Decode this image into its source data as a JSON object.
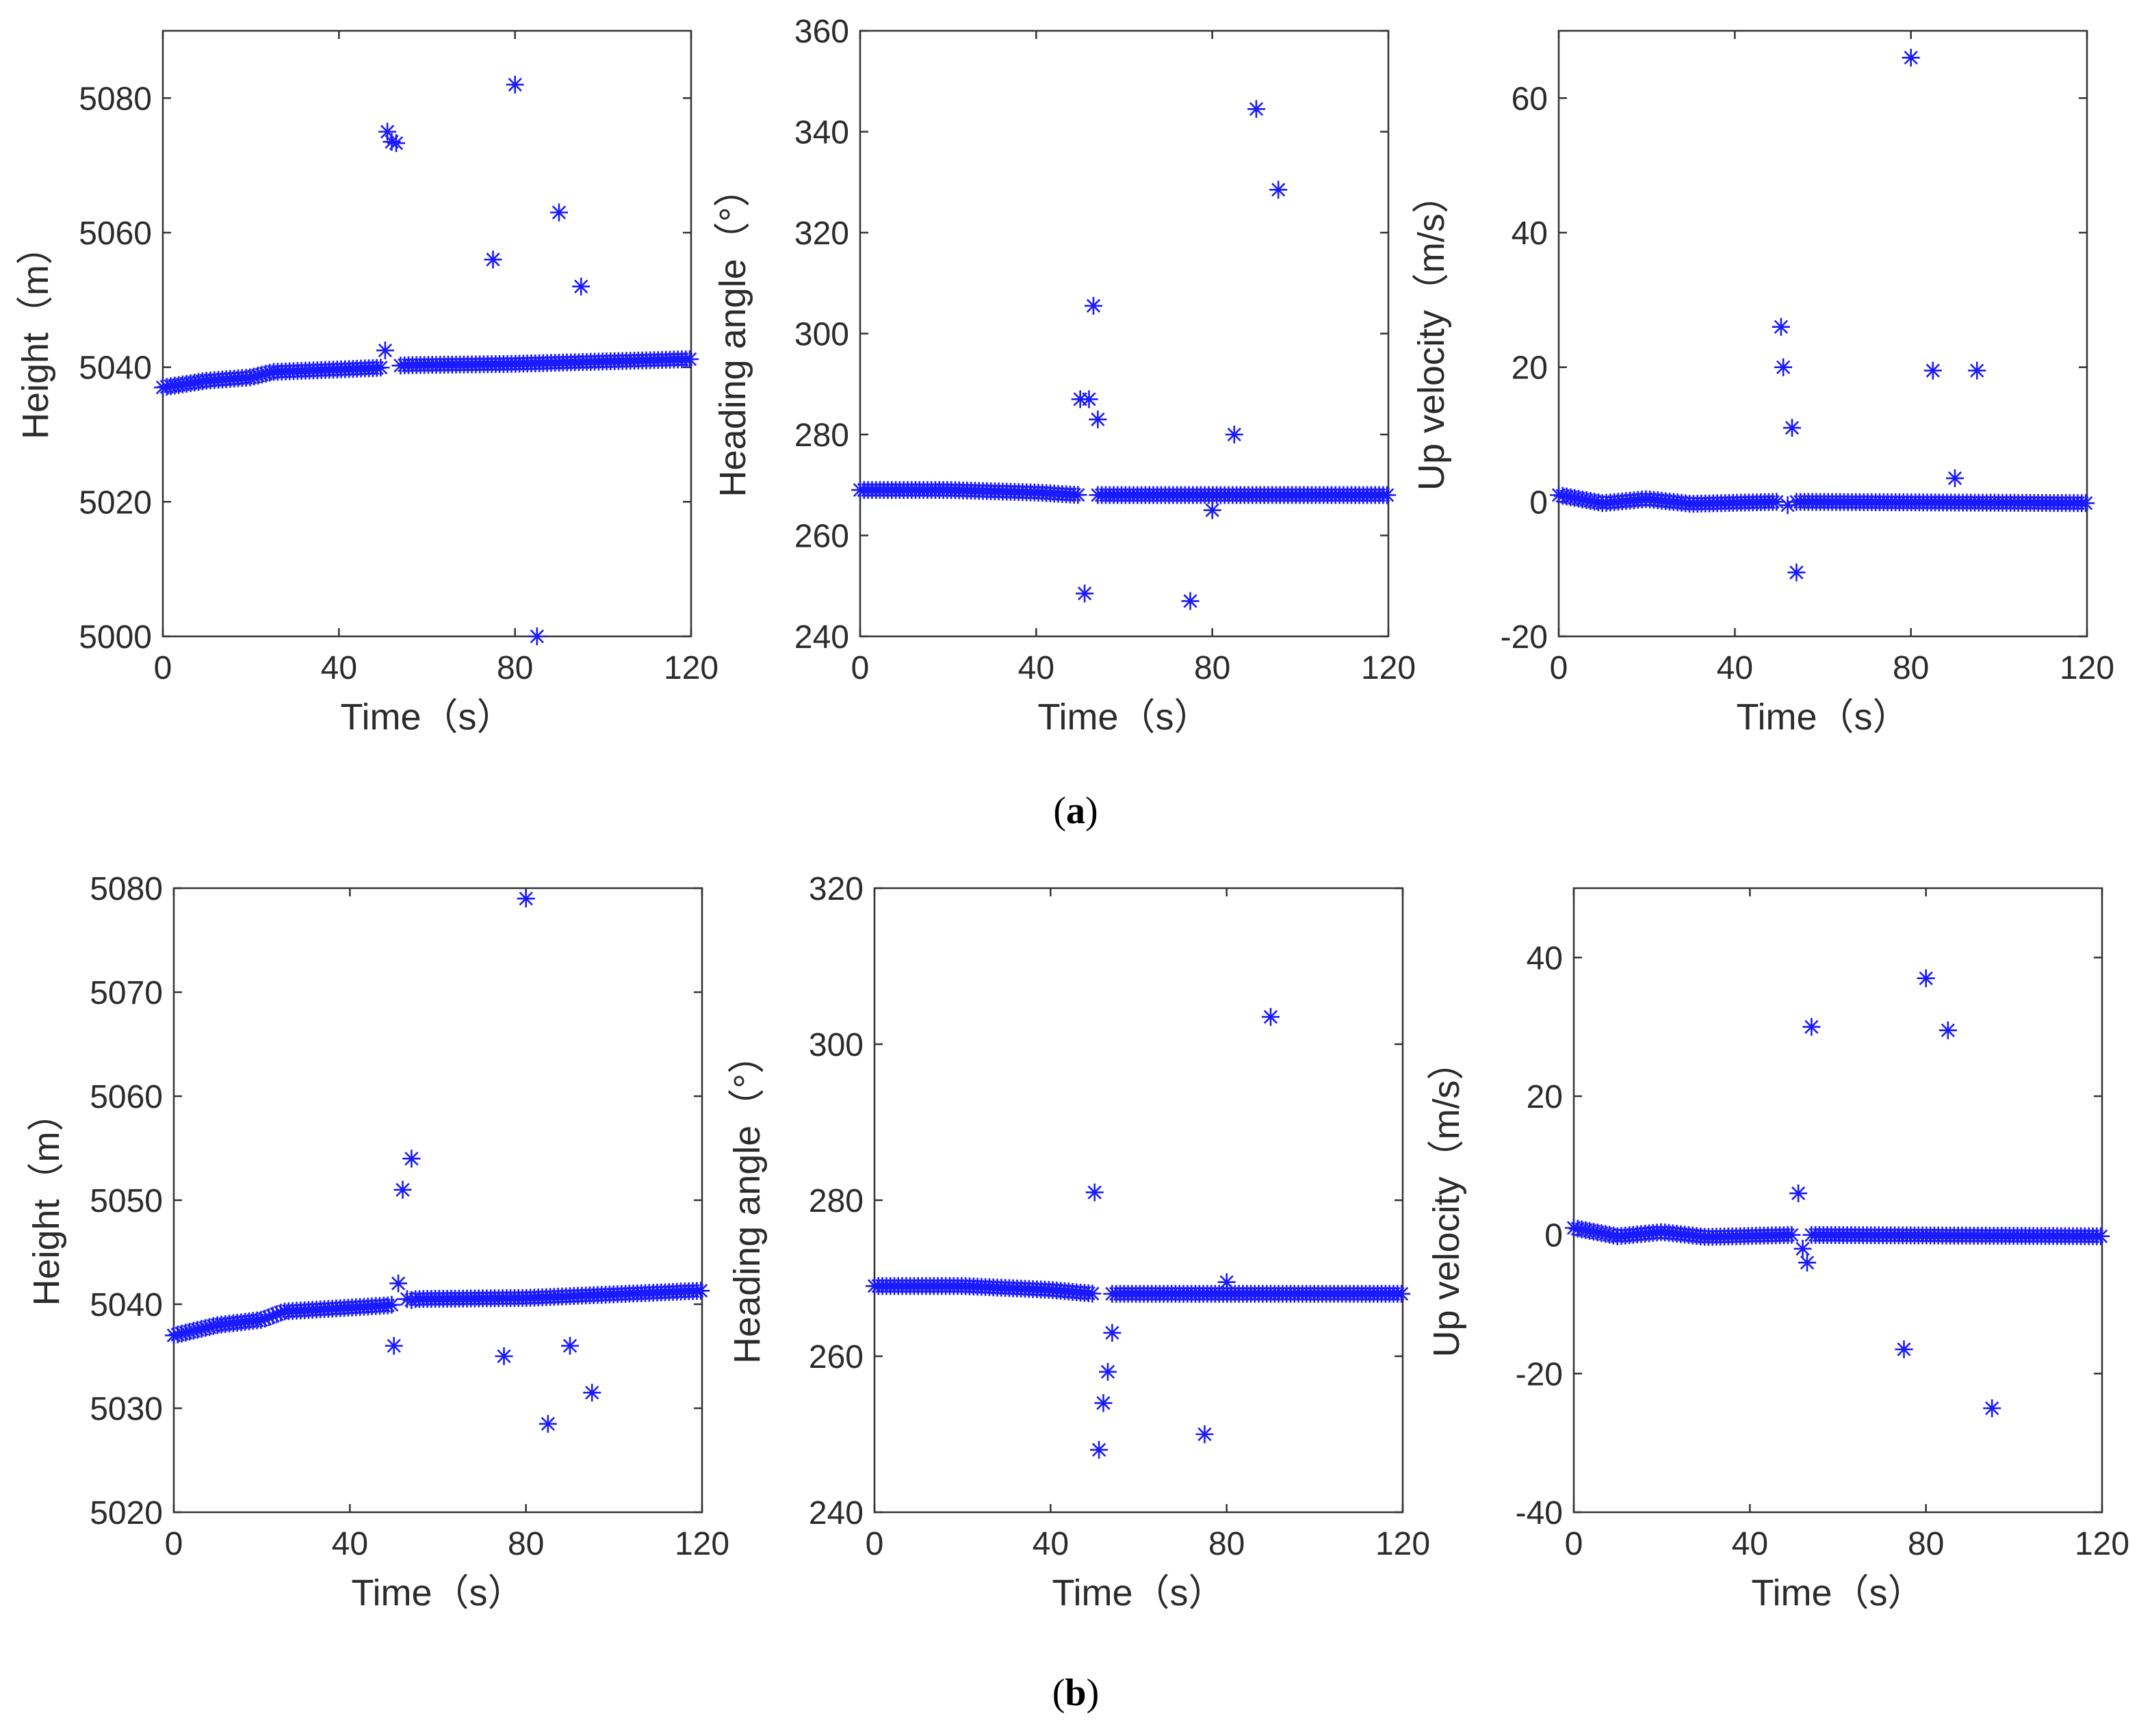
{
  "figure": {
    "label_a_open": "(",
    "label_a_letter": "a",
    "label_a_close": ")",
    "label_b_open": "(",
    "label_b_letter": "b",
    "label_b_close": ")"
  },
  "colors": {
    "marker": "#1a1aff",
    "axis": "#333333",
    "text": "#2b2b2b"
  },
  "chart_data": [
    {
      "id": "a-height",
      "type": "scatter",
      "marker": "*",
      "xlabel": "Time（s）",
      "ylabel": "Height（m）",
      "xlim": [
        0,
        120
      ],
      "ylim": [
        5000,
        5090
      ],
      "xticks": [
        0,
        40,
        80,
        120
      ],
      "yticks": [
        5000,
        5020,
        5040,
        5060,
        5080
      ],
      "trend": {
        "from": 0,
        "to": 120,
        "step": 0.9,
        "y": [
          [
            0,
            5037
          ],
          [
            10,
            5038
          ],
          [
            20,
            5038.5
          ],
          [
            25,
            5039.3
          ],
          [
            49,
            5039.9
          ],
          [
            50,
            5040
          ],
          [
            55,
            5040.3
          ],
          [
            80,
            5040.5
          ],
          [
            120,
            5041.2
          ]
        ]
      },
      "outliers": [
        [
          50.5,
          5042.5
        ],
        [
          51,
          5075
        ],
        [
          52,
          5073.5
        ],
        [
          53,
          5073.3
        ],
        [
          75,
          5056
        ],
        [
          80,
          5082
        ],
        [
          85,
          5000
        ],
        [
          90,
          5063
        ],
        [
          95,
          5052
        ]
      ]
    },
    {
      "id": "a-heading",
      "type": "scatter",
      "marker": "*",
      "xlabel": "Time（s）",
      "ylabel": "Heading angle（°）",
      "xlim": [
        0,
        120
      ],
      "ylim": [
        240,
        360
      ],
      "xticks": [
        0,
        40,
        80,
        120
      ],
      "yticks": [
        240,
        260,
        280,
        300,
        320,
        340,
        360
      ],
      "trend": {
        "from": 0,
        "to": 120,
        "step": 0.9,
        "y": [
          [
            0,
            269
          ],
          [
            20,
            269
          ],
          [
            40,
            268.5
          ],
          [
            50,
            268
          ],
          [
            55,
            268
          ],
          [
            120,
            268
          ]
        ]
      },
      "outliers": [
        [
          50,
          287
        ],
        [
          51,
          248.5
        ],
        [
          52,
          287
        ],
        [
          53,
          305.5
        ],
        [
          54,
          283
        ],
        [
          75,
          247
        ],
        [
          80,
          265
        ],
        [
          85,
          280
        ],
        [
          90,
          344.5
        ],
        [
          95,
          328.5
        ]
      ]
    },
    {
      "id": "a-upvel",
      "type": "scatter",
      "marker": "*",
      "xlabel": "Time（s）",
      "ylabel": "Up velocity（m/s）",
      "xlim": [
        0,
        120
      ],
      "ylim": [
        -20,
        70
      ],
      "xticks": [
        0,
        40,
        80,
        120
      ],
      "yticks": [
        -20,
        0,
        20,
        40,
        60
      ],
      "trend": {
        "from": 0,
        "to": 120,
        "step": 0.9,
        "y": [
          [
            0,
            1
          ],
          [
            10,
            -0.2
          ],
          [
            20,
            0.4
          ],
          [
            30,
            -0.3
          ],
          [
            50,
            0
          ],
          [
            120,
            -0.2
          ]
        ]
      },
      "outliers": [
        [
          50.5,
          26
        ],
        [
          51,
          20
        ],
        [
          52,
          -0.5
        ],
        [
          53,
          11
        ],
        [
          54,
          -10.5
        ],
        [
          80,
          66
        ],
        [
          85,
          19.5
        ],
        [
          90,
          3.5
        ],
        [
          95,
          19.5
        ]
      ]
    },
    {
      "id": "b-height",
      "type": "scatter",
      "marker": "*",
      "xlabel": "Time（s）",
      "ylabel": "Height（m）",
      "xlim": [
        0,
        120
      ],
      "ylim": [
        5020,
        5080
      ],
      "xticks": [
        0,
        40,
        80,
        120
      ],
      "yticks": [
        5020,
        5030,
        5040,
        5050,
        5060,
        5070,
        5080
      ],
      "trend": {
        "from": 0,
        "to": 120,
        "step": 0.9,
        "y": [
          [
            0,
            5037
          ],
          [
            10,
            5038
          ],
          [
            20,
            5038.5
          ],
          [
            25,
            5039.3
          ],
          [
            49,
            5039.9
          ],
          [
            50,
            5040
          ],
          [
            55,
            5040.5
          ],
          [
            80,
            5040.6
          ],
          [
            120,
            5041.3
          ]
        ]
      },
      "outliers": [
        [
          50,
          5036
        ],
        [
          51,
          5042
        ],
        [
          52,
          5051
        ],
        [
          53,
          5040.5
        ],
        [
          54,
          5054
        ],
        [
          75,
          5035
        ],
        [
          80,
          5079
        ],
        [
          85,
          5028.5
        ],
        [
          90,
          5036
        ],
        [
          95,
          5031.5
        ]
      ]
    },
    {
      "id": "b-heading",
      "type": "scatter",
      "marker": "*",
      "xlabel": "Time（s）",
      "ylabel": "Heading angle（°）",
      "xlim": [
        0,
        120
      ],
      "ylim": [
        240,
        320
      ],
      "xticks": [
        0,
        40,
        80,
        120
      ],
      "yticks": [
        240,
        260,
        280,
        300,
        320
      ],
      "trend": {
        "from": 0,
        "to": 120,
        "step": 0.9,
        "y": [
          [
            0,
            269
          ],
          [
            20,
            269
          ],
          [
            40,
            268.5
          ],
          [
            50,
            268
          ],
          [
            55,
            268
          ],
          [
            120,
            268
          ]
        ]
      },
      "outliers": [
        [
          50,
          281
        ],
        [
          51,
          248
        ],
        [
          52,
          254
        ],
        [
          53,
          258
        ],
        [
          54,
          263
        ],
        [
          75,
          250
        ],
        [
          80,
          269.5
        ],
        [
          90,
          303.5
        ]
      ]
    },
    {
      "id": "b-upvel",
      "type": "scatter",
      "marker": "*",
      "xlabel": "Time（s）",
      "ylabel": "Up velocity（m/s）",
      "xlim": [
        0,
        120
      ],
      "ylim": [
        -40,
        50
      ],
      "xticks": [
        0,
        40,
        80,
        120
      ],
      "yticks": [
        -40,
        -20,
        0,
        20,
        40
      ],
      "trend": {
        "from": 0,
        "to": 120,
        "step": 0.9,
        "y": [
          [
            0,
            1
          ],
          [
            10,
            -0.2
          ],
          [
            20,
            0.4
          ],
          [
            30,
            -0.3
          ],
          [
            50,
            0
          ],
          [
            120,
            -0.2
          ]
        ]
      },
      "outliers": [
        [
          51,
          6
        ],
        [
          52,
          -2
        ],
        [
          53,
          -4
        ],
        [
          54,
          30
        ],
        [
          75,
          -16.5
        ],
        [
          80,
          37
        ],
        [
          85,
          29.5
        ],
        [
          95,
          -25
        ]
      ]
    }
  ]
}
